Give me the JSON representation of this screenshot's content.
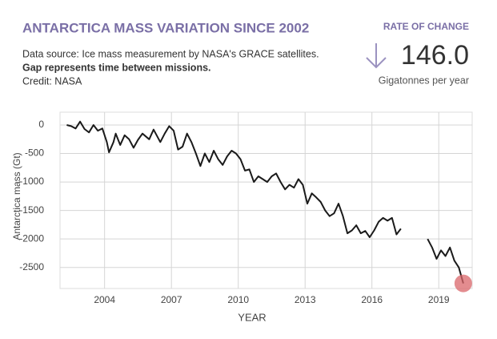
{
  "header": {
    "source": "Data source: Ice mass measurement by NASA's GRACE satellites.",
    "gap_note": "Gap represents time between missions.",
    "credit": "Credit: NASA",
    "rate_title": "RATE OF CHANGE",
    "rate_value": "146.0",
    "rate_unit": "Gigatonnes per year"
  },
  "chart_data": {
    "type": "line",
    "title": "ANTARCTICA MASS VARIATION SINCE 2002",
    "x_label": "YEAR",
    "y_label": "Antarctica mass (Gt)",
    "color": "#1a1a1a",
    "highlight_color": "#d9666a",
    "grid": true,
    "xlim": [
      2002,
      2020.5
    ],
    "ylim": [
      -2870,
      225
    ],
    "xticks": [
      2004,
      2007,
      2010,
      2013,
      2016,
      2019
    ],
    "yticks": [
      0,
      -500,
      -1000,
      -1500,
      -2000,
      -2500
    ],
    "x": [
      2002.3,
      2002.5,
      2002.7,
      2002.9,
      2003.1,
      2003.3,
      2003.5,
      2003.7,
      2003.9,
      2004.1,
      2004.2,
      2004.4,
      2004.5,
      2004.7,
      2004.9,
      2005.1,
      2005.3,
      2005.5,
      2005.7,
      2006.0,
      2006.2,
      2006.5,
      2006.7,
      2006.9,
      2007.1,
      2007.3,
      2007.5,
      2007.7,
      2007.9,
      2008.1,
      2008.3,
      2008.5,
      2008.7,
      2008.9,
      2009.1,
      2009.3,
      2009.5,
      2009.7,
      2009.9,
      2010.1,
      2010.3,
      2010.5,
      2010.7,
      2010.9,
      2011.1,
      2011.3,
      2011.5,
      2011.7,
      2011.9,
      2012.1,
      2012.3,
      2012.5,
      2012.7,
      2012.9,
      2013.1,
      2013.3,
      2013.5,
      2013.7,
      2013.9,
      2014.1,
      2014.3,
      2014.5,
      2014.7,
      2014.9,
      2015.1,
      2015.3,
      2015.5,
      2015.7,
      2015.9,
      2016.1,
      2016.3,
      2016.5,
      2016.7,
      2016.9,
      2017.1,
      2017.3,
      2017.9,
      2018.5,
      2018.7,
      2018.9,
      2019.1,
      2019.3,
      2019.5,
      2019.7,
      2019.9,
      2020.1
    ],
    "values": [
      0,
      -20,
      -60,
      60,
      -70,
      -130,
      0,
      -100,
      -60,
      -300,
      -480,
      -300,
      -150,
      -350,
      -180,
      -250,
      -400,
      -260,
      -150,
      -250,
      -80,
      -300,
      -150,
      -20,
      -100,
      -430,
      -380,
      -150,
      -300,
      -500,
      -720,
      -500,
      -650,
      -450,
      -600,
      -700,
      -550,
      -450,
      -500,
      -600,
      -800,
      -780,
      -1000,
      -900,
      -950,
      -1000,
      -900,
      -850,
      -1000,
      -1130,
      -1050,
      -1100,
      -950,
      -1050,
      -1380,
      -1200,
      -1270,
      -1350,
      -1500,
      -1600,
      -1550,
      -1380,
      -1600,
      -1900,
      -1850,
      -1760,
      -1900,
      -1860,
      -1970,
      -1850,
      -1700,
      -1630,
      -1680,
      -1630,
      -1920,
      -1820,
      null,
      -2000,
      -2150,
      -2350,
      -2200,
      -2300,
      -2150,
      -2380,
      -2500,
      -2780
    ]
  }
}
